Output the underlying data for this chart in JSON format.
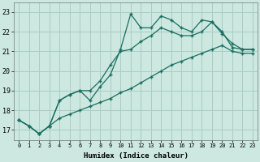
{
  "title": "",
  "xlabel": "Humidex (Indice chaleur)",
  "ylabel": "",
  "bg_color": "#cce8e0",
  "grid_color": "#aaccc4",
  "line_color": "#1a6e60",
  "xlim": [
    -0.5,
    23.5
  ],
  "ylim": [
    16.5,
    23.5
  ],
  "xticks": [
    0,
    1,
    2,
    3,
    4,
    5,
    6,
    7,
    8,
    9,
    10,
    11,
    12,
    13,
    14,
    15,
    16,
    17,
    18,
    19,
    20,
    21,
    22,
    23
  ],
  "yticks": [
    17,
    18,
    19,
    20,
    21,
    22,
    23
  ],
  "series": [
    [
      17.5,
      17.2,
      16.8,
      17.2,
      18.5,
      18.8,
      19.0,
      18.5,
      19.2,
      19.8,
      21.1,
      22.9,
      22.2,
      22.2,
      22.8,
      22.6,
      22.2,
      22.0,
      22.6,
      22.5,
      22.0,
      21.2,
      21.1,
      21.1
    ],
    [
      17.5,
      17.2,
      16.8,
      17.2,
      18.5,
      18.8,
      19.0,
      19.0,
      19.5,
      20.3,
      21.0,
      21.1,
      21.5,
      21.8,
      22.2,
      22.0,
      21.8,
      21.8,
      22.0,
      22.5,
      21.9,
      21.4,
      21.1,
      21.1
    ],
    [
      17.5,
      17.2,
      16.8,
      17.2,
      17.6,
      17.8,
      18.0,
      18.2,
      18.4,
      18.6,
      18.9,
      19.1,
      19.4,
      19.7,
      20.0,
      20.3,
      20.5,
      20.7,
      20.9,
      21.1,
      21.3,
      21.0,
      20.9,
      20.9
    ]
  ]
}
